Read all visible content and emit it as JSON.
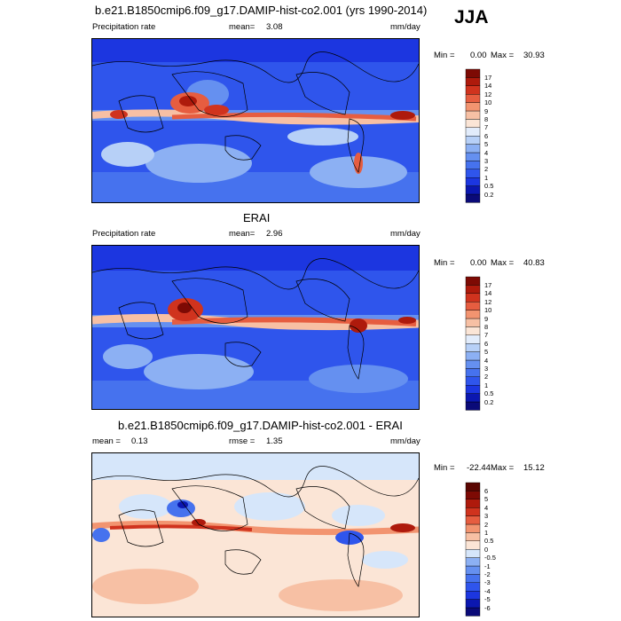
{
  "season": "JJA",
  "chart_data": [
    {
      "type": "heatmap",
      "title": "b.e21.B1850cmip6.f09_g17.DAMIP-hist-co2.001 (yrs 1990-2014)",
      "left_label": "Precipitation rate",
      "stats": [
        {
          "label": "mean=",
          "value": "3.08"
        }
      ],
      "units": "mm/day",
      "min_max": {
        "min_label": "Min =",
        "min": "0.00",
        "max_label": "Max =",
        "max": "30.93"
      },
      "colorbar": {
        "ticks": [
          "0.2",
          "0.5",
          "1",
          "2",
          "3",
          "4",
          "5",
          "6",
          "7",
          "8",
          "9",
          "10",
          "12",
          "14",
          "17"
        ],
        "colors": [
          "#0a0a78",
          "#0b17b0",
          "#1c36e0",
          "#2f55ec",
          "#4672ee",
          "#6590f0",
          "#8cb0f3",
          "#b7d0f7",
          "#e2ecfb",
          "#fbe5d6",
          "#f7c0a4",
          "#f29470",
          "#e65d40",
          "#d0331e",
          "#ae1a0c",
          "#7d0a04"
        ]
      }
    },
    {
      "type": "heatmap",
      "title": "ERAI",
      "left_label": "Precipitation rate",
      "stats": [
        {
          "label": "mean=",
          "value": "2.96"
        }
      ],
      "units": "mm/day",
      "min_max": {
        "min_label": "Min =",
        "min": "0.00",
        "max_label": "Max =",
        "max": "40.83"
      },
      "colorbar": {
        "ticks": [
          "0.2",
          "0.5",
          "1",
          "2",
          "3",
          "4",
          "5",
          "6",
          "7",
          "8",
          "9",
          "10",
          "12",
          "14",
          "17"
        ],
        "colors": [
          "#0a0a78",
          "#0b17b0",
          "#1c36e0",
          "#2f55ec",
          "#4672ee",
          "#6590f0",
          "#8cb0f3",
          "#b7d0f7",
          "#e2ecfb",
          "#fbe5d6",
          "#f7c0a4",
          "#f29470",
          "#e65d40",
          "#d0331e",
          "#ae1a0c",
          "#7d0a04"
        ]
      }
    },
    {
      "type": "heatmap",
      "title": "b.e21.B1850cmip6.f09_g17.DAMIP-hist-co2.001 - ERAI",
      "left_label": "",
      "stats": [
        {
          "label": "mean =",
          "value": "0.13"
        },
        {
          "label": "rmse =",
          "value": "1.35"
        }
      ],
      "units": "mm/day",
      "min_max": {
        "min_label": "Min =",
        "min": "-22.44",
        "max_label": "Max =",
        "max": "15.12"
      },
      "colorbar": {
        "ticks": [
          "-6",
          "-5",
          "-4",
          "-3",
          "-2",
          "-1",
          "-0.5",
          "0",
          "0.5",
          "1",
          "2",
          "3",
          "4",
          "5",
          "6"
        ],
        "colors": [
          "#0a0a78",
          "#0b17b0",
          "#1c36e0",
          "#2f55ec",
          "#4672ee",
          "#6590f0",
          "#8cb0f3",
          "#d6e6fa",
          "#fbe5d6",
          "#f7c0a4",
          "#f29470",
          "#e65d40",
          "#d0331e",
          "#ae1a0c",
          "#7d0a04",
          "#5a0501"
        ]
      }
    }
  ]
}
